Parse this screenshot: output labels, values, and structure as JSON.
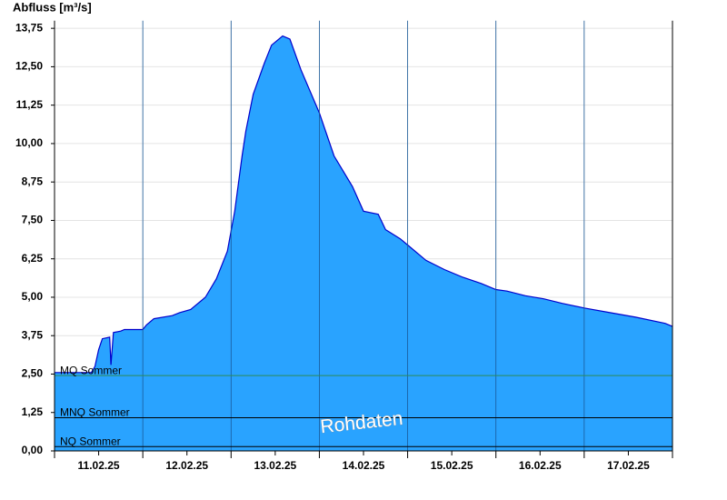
{
  "chart_data": {
    "type": "area",
    "y_axis_label": "Abfluss [m³/s]",
    "watermark": "Rohdaten",
    "color": "#29a3ff",
    "line_color": "#0000cc",
    "grid": true,
    "x": [
      "2025-02-11T00:00",
      "2025-02-11T10:00",
      "2025-02-11T11:00",
      "2025-02-11T12:00",
      "2025-02-11T13:00",
      "2025-02-11T15:00",
      "2025-02-11T15:20",
      "2025-02-11T16:00",
      "2025-02-11T18:00",
      "2025-02-11T19:00",
      "2025-02-12T00:00",
      "2025-02-12T01:00",
      "2025-02-12T03:00",
      "2025-02-12T08:00",
      "2025-02-12T10:00",
      "2025-02-12T13:00",
      "2025-02-12T17:00",
      "2025-02-12T20:00",
      "2025-02-12T23:00",
      "2025-02-13T01:00",
      "2025-02-13T03:00",
      "2025-02-13T04:00",
      "2025-02-13T06:00",
      "2025-02-13T09:00",
      "2025-02-13T11:00",
      "2025-02-13T14:00",
      "2025-02-13T16:00",
      "2025-02-13T19:00",
      "2025-02-14T00:00",
      "2025-02-14T04:00",
      "2025-02-14T09:00",
      "2025-02-14T12:00",
      "2025-02-14T16:00",
      "2025-02-14T18:00",
      "2025-02-14T22:00",
      "2025-02-15T00:00",
      "2025-02-15T05:00",
      "2025-02-15T10:00",
      "2025-02-15T15:00",
      "2025-02-15T20:00",
      "2025-02-16T00:00",
      "2025-02-16T03:00",
      "2025-02-16T08:00",
      "2025-02-16T13:00",
      "2025-02-16T18:00",
      "2025-02-17T00:00",
      "2025-02-17T07:00",
      "2025-02-17T14:00",
      "2025-02-17T22:00",
      "2025-02-18T00:00"
    ],
    "values": [
      2.55,
      2.55,
      2.75,
      3.3,
      3.65,
      3.7,
      2.8,
      3.85,
      3.9,
      3.95,
      3.95,
      4.1,
      4.3,
      4.4,
      4.5,
      4.6,
      5.0,
      5.6,
      6.5,
      7.8,
      9.6,
      10.4,
      11.6,
      12.6,
      13.2,
      13.5,
      13.4,
      12.4,
      11.0,
      9.6,
      8.6,
      7.8,
      7.7,
      7.2,
      6.9,
      6.7,
      6.2,
      5.9,
      5.65,
      5.45,
      5.25,
      5.2,
      5.05,
      4.95,
      4.8,
      4.65,
      4.5,
      4.35,
      4.15,
      4.05
    ],
    "xlim": [
      "2025-02-11T00:00",
      "2025-02-18T00:00"
    ],
    "xticks": [
      {
        "value": "2025-02-11T12:00",
        "label": "11.02.25"
      },
      {
        "value": "2025-02-12T12:00",
        "label": "12.02.25"
      },
      {
        "value": "2025-02-13T12:00",
        "label": "13.02.25"
      },
      {
        "value": "2025-02-14T12:00",
        "label": "14.02.25"
      },
      {
        "value": "2025-02-15T12:00",
        "label": "15.02.25"
      },
      {
        "value": "2025-02-16T12:00",
        "label": "16.02.25"
      },
      {
        "value": "2025-02-17T12:00",
        "label": "17.02.25"
      }
    ],
    "ylim": [
      0,
      14
    ],
    "yticks": [
      {
        "value": 0,
        "label": "0,00"
      },
      {
        "value": 1.25,
        "label": "1,25"
      },
      {
        "value": 2.5,
        "label": "2,50"
      },
      {
        "value": 3.75,
        "label": "3,75"
      },
      {
        "value": 5,
        "label": "5,00"
      },
      {
        "value": 6.25,
        "label": "6,25"
      },
      {
        "value": 7.5,
        "label": "7,50"
      },
      {
        "value": 8.75,
        "label": "8,75"
      },
      {
        "value": 10,
        "label": "10,00"
      },
      {
        "value": 11.25,
        "label": "11,25"
      },
      {
        "value": 12.5,
        "label": "12,50"
      },
      {
        "value": 13.75,
        "label": "13,75"
      }
    ],
    "reference_lines": [
      {
        "label": "MQ Sommer",
        "value": 2.45,
        "color": "#2e8b57"
      },
      {
        "label": "MNQ Sommer",
        "value": 1.08,
        "color": "#000000"
      },
      {
        "label": "NQ Sommer",
        "value": 0.14,
        "color": "#000000"
      }
    ]
  }
}
